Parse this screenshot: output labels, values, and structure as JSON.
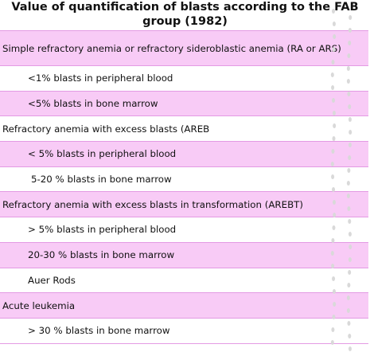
{
  "title": "Value of quantification of blasts according to the FAB group (1982)",
  "rows": [
    {
      "text": "Simple refractory anemia or refractory sideroblastic anemia (RA or ARS)",
      "style": "pink",
      "indent": 0
    },
    {
      "text": "<1% blasts in peripheral blood",
      "style": "white",
      "indent": 1
    },
    {
      "text": "<5% blasts in bone marrow",
      "style": "pink",
      "indent": 1
    },
    {
      "text": "Refractory anemia with excess blasts (AREB",
      "style": "white",
      "indent": 0
    },
    {
      "text": "< 5% blasts in peripheral blood",
      "style": "pink",
      "indent": 1
    },
    {
      "text": "5-20 % blasts in bone marrow",
      "style": "white",
      "indent": 2
    },
    {
      "text": "Refractory anemia with excess blasts in transformation (AREBT)",
      "style": "pink",
      "indent": 0
    },
    {
      "text": "> 5% blasts in peripheral blood",
      "style": "white",
      "indent": 1
    },
    {
      "text": "20-30 % blasts in bone marrow",
      "style": "pink",
      "indent": 1
    },
    {
      "text": "Auer Rods",
      "style": "white",
      "indent": 1
    },
    {
      "text": "Acute leukemia",
      "style": "pink",
      "indent": 0
    },
    {
      "text": "> 30 % blasts in bone marrow",
      "style": "white",
      "indent": 1
    }
  ],
  "colors": {
    "row_pink": "#f8cbf6",
    "border": "#e39ae3",
    "dots": "#d9d9d9"
  }
}
